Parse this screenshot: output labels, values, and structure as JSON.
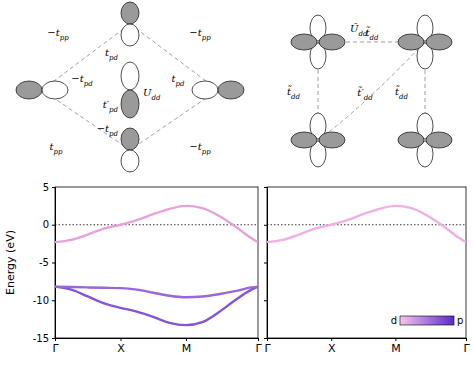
{
  "chart_data": [
    {
      "type": "line",
      "x": [
        0,
        0.25,
        0.5,
        0.75,
        1,
        1.25,
        1.5,
        1.75,
        2,
        2.25,
        2.5,
        2.75,
        3,
        3.1
      ],
      "xlim": [
        0,
        3.1
      ],
      "xticks": [
        {
          "value": 0,
          "label": "Γ"
        },
        {
          "value": 1,
          "label": "X"
        },
        {
          "value": 2,
          "label": "M"
        },
        {
          "value": 3.1,
          "label": "Γ"
        }
      ],
      "ylim": [
        -15,
        5
      ],
      "yticks": [
        -15,
        -10,
        -5,
        0,
        5
      ],
      "y_label": "Energy (eV)",
      "fermi_level": 0,
      "series": [
        {
          "color": "#e8a2da",
          "values": [
            -2.3,
            -2.0,
            -1.3,
            -0.5,
            0.0,
            0.6,
            1.4,
            2.1,
            2.5,
            2.2,
            1.2,
            -0.2,
            -1.8,
            -2.3
          ]
        },
        {
          "color": "#9a66d8",
          "values": [
            -8.2,
            -8.25,
            -8.3,
            -8.35,
            -8.4,
            -8.6,
            -9.0,
            -9.4,
            -9.6,
            -9.5,
            -9.2,
            -8.8,
            -8.3,
            -8.2
          ]
        },
        {
          "color": "#8654d4",
          "values": [
            -8.2,
            -8.6,
            -9.5,
            -10.4,
            -11.0,
            -11.5,
            -12.2,
            -13.0,
            -13.3,
            -12.9,
            -11.6,
            -10.0,
            -8.6,
            -8.2
          ]
        }
      ]
    },
    {
      "type": "line",
      "x": [
        0,
        0.25,
        0.5,
        0.75,
        1,
        1.25,
        1.5,
        1.75,
        2,
        2.25,
        2.5,
        2.75,
        3,
        3.1
      ],
      "xlim": [
        0,
        3.1
      ],
      "xticks": [
        {
          "value": 0,
          "label": "Γ"
        },
        {
          "value": 1,
          "label": "X"
        },
        {
          "value": 2,
          "label": "M"
        },
        {
          "value": 3.1,
          "label": "Γ"
        }
      ],
      "ylim": [
        -15,
        5
      ],
      "yticks": [
        -15,
        -10,
        -5,
        0,
        5
      ],
      "tick_labels": "x",
      "fermi_level": 0,
      "series": [
        {
          "color": "#eeb0e2",
          "values": [
            -2.3,
            -2.0,
            -1.3,
            -0.5,
            0.0,
            0.6,
            1.4,
            2.1,
            2.5,
            2.2,
            1.2,
            -0.2,
            -1.8,
            -2.3
          ]
        }
      ],
      "colorbar": {
        "labels": [
          "d",
          "p"
        ],
        "colors": [
          "#f8c4ee",
          "#5b2bc9"
        ]
      }
    }
  ],
  "diagrams": [
    {
      "labels": [
        {
          "base": "−t",
          "sub": "pp"
        },
        {
          "base": "−t",
          "sub": "pp"
        },
        {
          "base": "t",
          "sub": "pd"
        },
        {
          "base": "U",
          "sub": "dd"
        },
        {
          "base": "−t",
          "sub": "pd"
        },
        {
          "base": "t",
          "sub": "pd"
        },
        {
          "base": "t′",
          "sub": "pd"
        },
        {
          "base": "−t",
          "sub": "pd"
        },
        {
          "base": "t",
          "sub": "pp"
        },
        {
          "base": "−t",
          "sub": "pp"
        }
      ]
    },
    {
      "labels": [
        {
          "base": "Ũ",
          "sub": "dd"
        },
        {
          "base": "t̃",
          "sub": "dd"
        },
        {
          "base": "t̃",
          "sub": "dd"
        },
        {
          "base": "t̃′",
          "sub": "dd"
        },
        {
          "base": "t̃",
          "sub": "dd"
        }
      ]
    }
  ]
}
